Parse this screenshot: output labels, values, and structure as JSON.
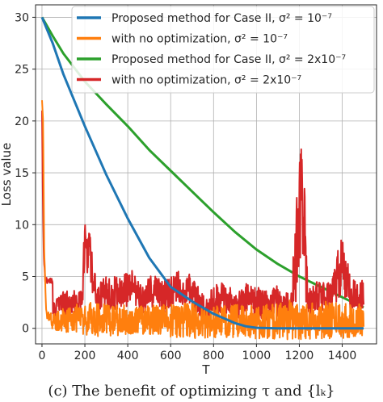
{
  "chart_data": {
    "type": "line",
    "xlabel": "T",
    "ylabel": "Loss value",
    "xlim": [
      -30,
      1560
    ],
    "ylim": [
      -1.5,
      31.2
    ],
    "xticks": [
      0,
      200,
      400,
      600,
      800,
      1000,
      1200,
      1400
    ],
    "yticks": [
      0,
      5,
      10,
      15,
      20,
      25,
      30
    ],
    "grid": true,
    "legend_position": "top-right",
    "series": [
      {
        "name": "Proposed method for Case II, σ² = 10⁻⁷",
        "color": "#1f77b4",
        "style": "smooth",
        "x": [
          0,
          50,
          100,
          200,
          300,
          400,
          500,
          600,
          700,
          800,
          900,
          950,
          1000,
          1100,
          1200,
          1300,
          1400,
          1500
        ],
        "y": [
          30,
          27.5,
          24.5,
          19.5,
          14.8,
          10.6,
          6.8,
          4.0,
          2.6,
          1.4,
          0.5,
          0.2,
          0.05,
          0,
          0,
          0,
          0,
          0
        ]
      },
      {
        "name": "with no optimization, σ² = 10⁻⁷",
        "color": "#ff7f0e",
        "style": "noisy",
        "x": [
          0,
          5,
          10,
          20,
          40,
          50,
          100,
          200,
          300,
          400,
          500,
          600,
          700,
          800,
          900,
          1000,
          1100,
          1200,
          1300,
          1400,
          1500
        ],
        "y": [
          22,
          20,
          8,
          1.5,
          1.0,
          0.6,
          0.8,
          0.9,
          0.8,
          0.8,
          0.8,
          0.7,
          0.7,
          0.6,
          0.7,
          0.6,
          0.7,
          0.9,
          0.8,
          0.8,
          0.8
        ],
        "band": [
          0,
          0,
          0,
          0.6,
          0.5,
          0.8,
          1.2,
          1.6,
          1.6,
          1.4,
          1.4,
          1.6,
          1.8,
          1.5,
          1.6,
          1.6,
          1.8,
          2.0,
          1.8,
          1.8,
          1.5
        ]
      },
      {
        "name": "Proposed method for Case II, σ² = 2x10⁻⁷",
        "color": "#2ca02c",
        "style": "smooth",
        "x": [
          0,
          50,
          100,
          200,
          300,
          400,
          500,
          600,
          700,
          800,
          900,
          1000,
          1100,
          1200,
          1300,
          1400,
          1500
        ],
        "y": [
          30,
          28.2,
          26.5,
          23.8,
          21.6,
          19.5,
          17.2,
          15.2,
          13.2,
          11.2,
          9.3,
          7.6,
          6.2,
          5.0,
          4.0,
          3.0,
          2.0
        ]
      },
      {
        "name": "with no optimization, σ² = 2x10⁻⁷",
        "color": "#d62728",
        "style": "noisy",
        "x": [
          0,
          3,
          8,
          15,
          30,
          50,
          51,
          100,
          190,
          200,
          260,
          280,
          340,
          400,
          420,
          480,
          500,
          560,
          600,
          640,
          700,
          760,
          800,
          860,
          900,
          940,
          1000,
          1060,
          1100,
          1160,
          1200,
          1220,
          1240,
          1260,
          1300,
          1340,
          1400,
          1440,
          1500
        ],
        "y": [
          21,
          14,
          7,
          4.7,
          4.6,
          4.5,
          1.7,
          2.4,
          2.6,
          9.5,
          2.6,
          3.5,
          3.4,
          3.7,
          4.3,
          2.4,
          3.8,
          3.0,
          3.3,
          4.0,
          3.5,
          1.8,
          2.6,
          3.0,
          1.9,
          2.8,
          2.6,
          2.1,
          2.7,
          1.9,
          10.5,
          10.8,
          2.7,
          3.0,
          3.0,
          3.0,
          6.2,
          3.3,
          3.3
        ],
        "band": [
          0,
          0,
          0,
          0.4,
          0.3,
          0.3,
          1.0,
          1.2,
          1.2,
          3.2,
          1.2,
          1.6,
          1.6,
          1.7,
          1.6,
          1.3,
          1.6,
          1.6,
          1.7,
          1.7,
          1.6,
          1.2,
          1.5,
          1.6,
          1.2,
          1.6,
          1.5,
          1.4,
          1.5,
          1.3,
          7.2,
          7.0,
          1.5,
          1.5,
          1.5,
          1.5,
          2.8,
          1.5,
          1.5
        ]
      }
    ],
    "legend": [
      "Proposed method for Case II, σ² = 10⁻⁷",
      "with no optimization, σ² = 10⁻⁷",
      "Proposed method for Case II, σ² = 2x10⁻⁷",
      "with no optimization, σ² = 2x10⁻⁷"
    ]
  },
  "caption": "(c) The benefit of optimizing τ and {lₖ}"
}
